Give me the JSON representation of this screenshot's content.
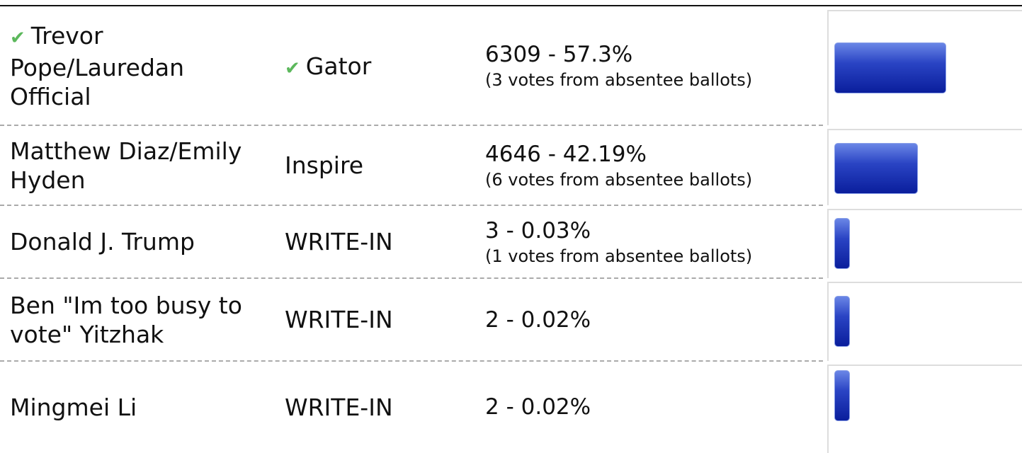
{
  "results": {
    "rows": [
      {
        "name": "Trevor Pope/Lauredan Official",
        "party": "Gator",
        "result": "6309 - 57.3%",
        "note": "(3 votes from absentee ballots)",
        "percent": 57.3,
        "elected": true
      },
      {
        "name": "Matthew Diaz/Emily Hyden",
        "party": "Inspire",
        "result": "4646 - 42.19%",
        "note": "(6 votes from absentee ballots)",
        "percent": 42.19,
        "elected": false
      },
      {
        "name": "Donald J. Trump",
        "party": "WRITE-IN",
        "result": "3 - 0.03%",
        "note": "(1 votes from absentee ballots)",
        "percent": 0.03,
        "elected": false
      },
      {
        "name": "Ben \"Im too busy to vote\" Yitzhak",
        "party": "WRITE-IN",
        "result": "2 - 0.02%",
        "percent": 0.02,
        "elected": false
      },
      {
        "name": "Mingmei Li",
        "party": "WRITE-IN",
        "result": "2 - 0.02%",
        "percent": 0.02,
        "elected": false
      }
    ]
  }
}
